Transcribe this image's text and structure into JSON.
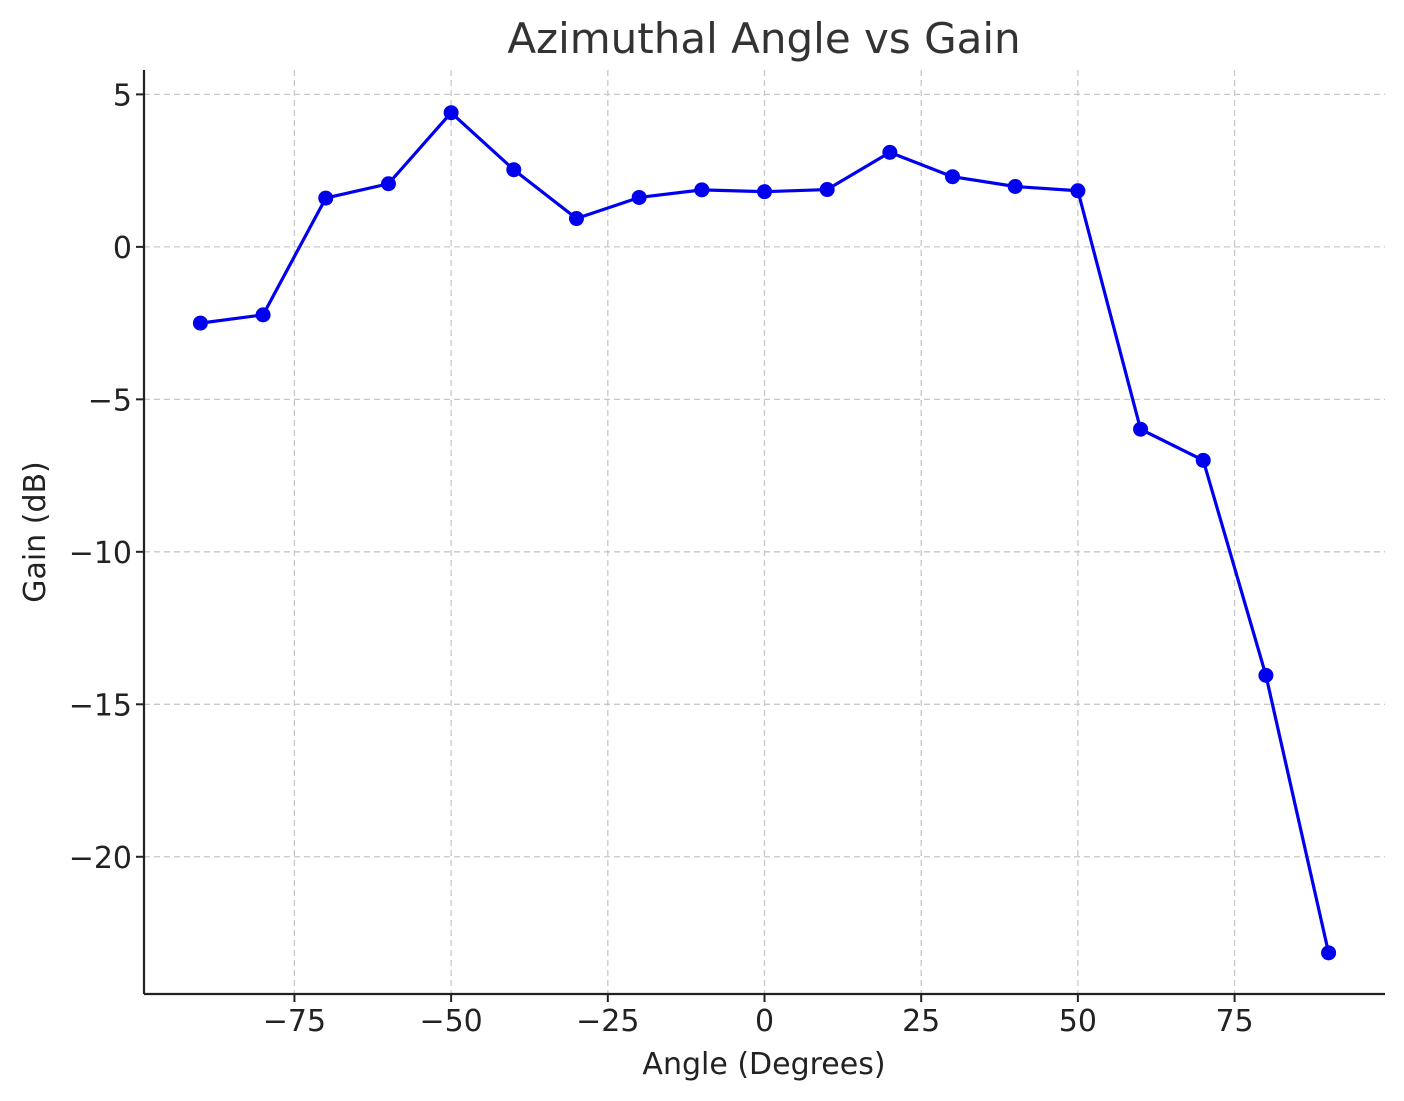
{
  "chart_data": {
    "type": "line",
    "title": "Azimuthal Angle vs Gain",
    "xlabel": "Angle (Degrees)",
    "ylabel": "Gain (dB)",
    "xlim": [
      -99,
      99
    ],
    "ylim": [
      -24.5,
      5.8
    ],
    "x_ticks": [
      -75,
      -50,
      -25,
      0,
      25,
      50,
      75
    ],
    "y_ticks": [
      5,
      0,
      -5,
      -10,
      -15,
      -20
    ],
    "x_tick_labels": [
      "−75",
      "−50",
      "−25",
      "0",
      "25",
      "50",
      "75"
    ],
    "y_tick_labels": [
      "5",
      "0",
      "−5",
      "−10",
      "−15",
      "−20"
    ],
    "grid": true,
    "series": [
      {
        "color": "#0000ee",
        "marker": "circle",
        "x": [
          -90,
          -80,
          -70,
          -60,
          -50,
          -40,
          -30,
          -20,
          -10,
          0,
          10,
          20,
          30,
          40,
          50,
          60,
          70,
          80,
          90
        ],
        "y": [
          -2.5,
          -2.23,
          1.6,
          2.07,
          4.4,
          2.53,
          0.93,
          1.62,
          1.87,
          1.81,
          1.88,
          3.1,
          2.3,
          1.98,
          1.84,
          -5.98,
          -7.0,
          -14.05,
          -23.15
        ]
      }
    ]
  }
}
